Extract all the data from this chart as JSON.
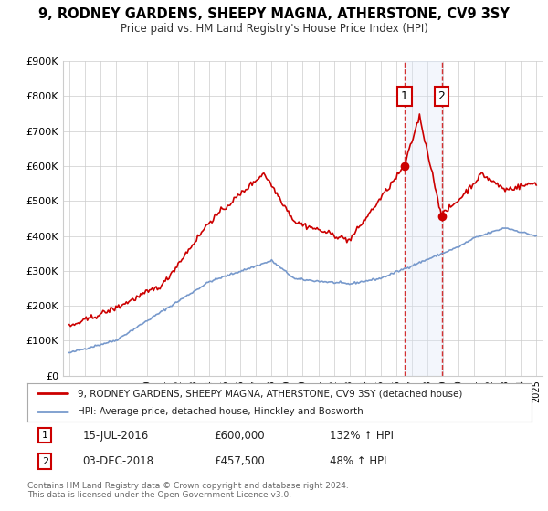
{
  "title": "9, RODNEY GARDENS, SHEEPY MAGNA, ATHERSTONE, CV9 3SY",
  "subtitle": "Price paid vs. HM Land Registry's House Price Index (HPI)",
  "legend_label_red": "9, RODNEY GARDENS, SHEEPY MAGNA, ATHERSTONE, CV9 3SY (detached house)",
  "legend_label_blue": "HPI: Average price, detached house, Hinckley and Bosworth",
  "sale1_date": "15-JUL-2016",
  "sale1_price": "£600,000",
  "sale1_hpi": "132% ↑ HPI",
  "sale1_year": 2016.54,
  "sale1_value": 600000,
  "sale2_date": "03-DEC-2018",
  "sale2_price": "£457,500",
  "sale2_hpi": "48% ↑ HPI",
  "sale2_year": 2018.92,
  "sale2_value": 457500,
  "footer": "Contains HM Land Registry data © Crown copyright and database right 2024.\nThis data is licensed under the Open Government Licence v3.0.",
  "ylim": [
    0,
    900000
  ],
  "yticks": [
    0,
    100000,
    200000,
    300000,
    400000,
    500000,
    600000,
    700000,
    800000,
    900000
  ],
  "ytick_labels": [
    "£0",
    "£100K",
    "£200K",
    "£300K",
    "£400K",
    "£500K",
    "£600K",
    "£700K",
    "£800K",
    "£900K"
  ],
  "red_color": "#cc0000",
  "blue_color": "#7799cc",
  "shade_color": "#dde8f8",
  "background_color": "#ffffff",
  "grid_color": "#cccccc",
  "xlim_left": 1994.6,
  "xlim_right": 2025.4
}
